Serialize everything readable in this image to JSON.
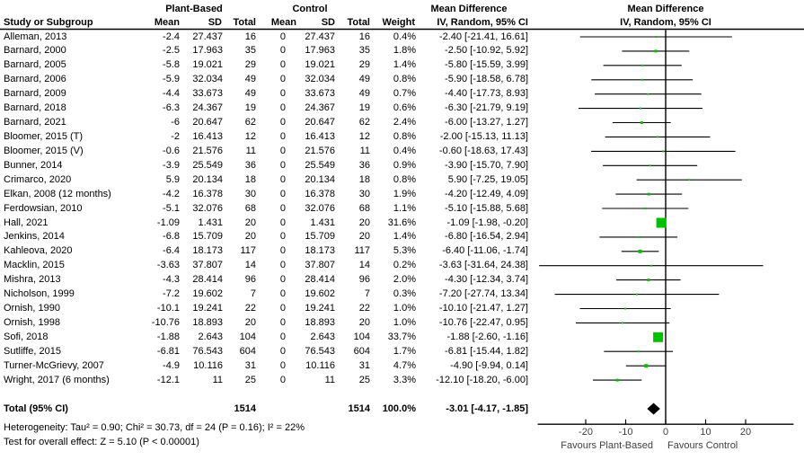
{
  "chart_data": {
    "type": "forest",
    "effect_label": "Mean Difference",
    "method_label": "IV, Random, 95% CI",
    "group1_label": "Plant-Based",
    "group2_label": "Control",
    "col_headers": {
      "study": "Study or Subgroup",
      "mean": "Mean",
      "sd": "SD",
      "total": "Total",
      "weight": "Weight"
    },
    "studies": [
      {
        "name": "Alleman, 2013",
        "m1": "-2.4",
        "sd1": "27.437",
        "n1": "16",
        "m2": "0",
        "sd2": "27.437",
        "n2": "16",
        "weight": "0.4%",
        "ci": "-2.40 [-21.41, 16.61]",
        "est": -2.4,
        "lo": -21.41,
        "hi": 16.61,
        "w": 0.4
      },
      {
        "name": "Barnard, 2000",
        "m1": "-2.5",
        "sd1": "17.963",
        "n1": "35",
        "m2": "0",
        "sd2": "17.963",
        "n2": "35",
        "weight": "1.8%",
        "ci": "-2.50 [-10.92, 5.92]",
        "est": -2.5,
        "lo": -10.92,
        "hi": 5.92,
        "w": 1.8
      },
      {
        "name": "Barnard, 2005",
        "m1": "-5.8",
        "sd1": "19.021",
        "n1": "29",
        "m2": "0",
        "sd2": "19.021",
        "n2": "29",
        "weight": "1.4%",
        "ci": "-5.80 [-15.59, 3.99]",
        "est": -5.8,
        "lo": -15.59,
        "hi": 3.99,
        "w": 1.4
      },
      {
        "name": "Barnard, 2006",
        "m1": "-5.9",
        "sd1": "32.034",
        "n1": "49",
        "m2": "0",
        "sd2": "32.034",
        "n2": "49",
        "weight": "0.8%",
        "ci": "-5.90 [-18.58, 6.78]",
        "est": -5.9,
        "lo": -18.58,
        "hi": 6.78,
        "w": 0.8
      },
      {
        "name": "Barnard, 2009",
        "m1": "-4.4",
        "sd1": "33.673",
        "n1": "49",
        "m2": "0",
        "sd2": "33.673",
        "n2": "49",
        "weight": "0.7%",
        "ci": "-4.40 [-17.73, 8.93]",
        "est": -4.4,
        "lo": -17.73,
        "hi": 8.93,
        "w": 0.7
      },
      {
        "name": "Barnard, 2018",
        "m1": "-6.3",
        "sd1": "24.367",
        "n1": "19",
        "m2": "0",
        "sd2": "24.367",
        "n2": "19",
        "weight": "0.6%",
        "ci": "-6.30 [-21.79, 9.19]",
        "est": -6.3,
        "lo": -21.79,
        "hi": 9.19,
        "w": 0.6
      },
      {
        "name": "Barnard, 2021",
        "m1": "-6",
        "sd1": "20.647",
        "n1": "62",
        "m2": "0",
        "sd2": "20.647",
        "n2": "62",
        "weight": "2.4%",
        "ci": "-6.00 [-13.27, 1.27]",
        "est": -6.0,
        "lo": -13.27,
        "hi": 1.27,
        "w": 2.4
      },
      {
        "name": "Bloomer, 2015 (T)",
        "m1": "-2",
        "sd1": "16.413",
        "n1": "12",
        "m2": "0",
        "sd2": "16.413",
        "n2": "12",
        "weight": "0.8%",
        "ci": "-2.00 [-15.13, 11.13]",
        "est": -2.0,
        "lo": -15.13,
        "hi": 11.13,
        "w": 0.8
      },
      {
        "name": "Bloomer, 2015 (V)",
        "m1": "-0.6",
        "sd1": "21.576",
        "n1": "11",
        "m2": "0",
        "sd2": "21.576",
        "n2": "11",
        "weight": "0.4%",
        "ci": "-0.60 [-18.63, 17.43]",
        "est": -0.6,
        "lo": -18.63,
        "hi": 17.43,
        "w": 0.4
      },
      {
        "name": "Bunner, 2014",
        "m1": "-3.9",
        "sd1": "25.549",
        "n1": "36",
        "m2": "0",
        "sd2": "25.549",
        "n2": "36",
        "weight": "0.9%",
        "ci": "-3.90 [-15.70, 7.90]",
        "est": -3.9,
        "lo": -15.7,
        "hi": 7.9,
        "w": 0.9
      },
      {
        "name": "Crimarco, 2020",
        "m1": "5.9",
        "sd1": "20.134",
        "n1": "18",
        "m2": "0",
        "sd2": "20.134",
        "n2": "18",
        "weight": "0.8%",
        "ci": "5.90 [-7.25, 19.05]",
        "est": 5.9,
        "lo": -7.25,
        "hi": 19.05,
        "w": 0.8
      },
      {
        "name": "Elkan, 2008 (12 months)",
        "m1": "-4.2",
        "sd1": "16.378",
        "n1": "30",
        "m2": "0",
        "sd2": "16.378",
        "n2": "30",
        "weight": "1.9%",
        "ci": "-4.20 [-12.49, 4.09]",
        "est": -4.2,
        "lo": -12.49,
        "hi": 4.09,
        "w": 1.9
      },
      {
        "name": "Ferdowsian, 2010",
        "m1": "-5.1",
        "sd1": "32.076",
        "n1": "68",
        "m2": "0",
        "sd2": "32.076",
        "n2": "68",
        "weight": "1.1%",
        "ci": "-5.10 [-15.88, 5.68]",
        "est": -5.1,
        "lo": -15.88,
        "hi": 5.68,
        "w": 1.1
      },
      {
        "name": "Hall, 2021",
        "m1": "-1.09",
        "sd1": "1.431",
        "n1": "20",
        "m2": "0",
        "sd2": "1.431",
        "n2": "20",
        "weight": "31.6%",
        "ci": "-1.09 [-1.98, -0.20]",
        "est": -1.09,
        "lo": -1.98,
        "hi": -0.2,
        "w": 31.6
      },
      {
        "name": "Jenkins, 2014",
        "m1": "-6.8",
        "sd1": "15.709",
        "n1": "20",
        "m2": "0",
        "sd2": "15.709",
        "n2": "20",
        "weight": "1.4%",
        "ci": "-6.80 [-16.54, 2.94]",
        "est": -6.8,
        "lo": -16.54,
        "hi": 2.94,
        "w": 1.4
      },
      {
        "name": "Kahleova, 2020",
        "m1": "-6.4",
        "sd1": "18.173",
        "n1": "117",
        "m2": "0",
        "sd2": "18.173",
        "n2": "117",
        "weight": "5.3%",
        "ci": "-6.40 [-11.06, -1.74]",
        "est": -6.4,
        "lo": -11.06,
        "hi": -1.74,
        "w": 5.3
      },
      {
        "name": "Macklin, 2015",
        "m1": "-3.63",
        "sd1": "37.807",
        "n1": "14",
        "m2": "0",
        "sd2": "37.807",
        "n2": "14",
        "weight": "0.2%",
        "ci": "-3.63 [-31.64, 24.38]",
        "est": -3.63,
        "lo": -31.64,
        "hi": 24.38,
        "w": 0.2
      },
      {
        "name": "Mishra, 2013",
        "m1": "-4.3",
        "sd1": "28.414",
        "n1": "96",
        "m2": "0",
        "sd2": "28.414",
        "n2": "96",
        "weight": "2.0%",
        "ci": "-4.30 [-12.34, 3.74]",
        "est": -4.3,
        "lo": -12.34,
        "hi": 3.74,
        "w": 2.0
      },
      {
        "name": "Nicholson, 1999",
        "m1": "-7.2",
        "sd1": "19.602",
        "n1": "7",
        "m2": "0",
        "sd2": "19.602",
        "n2": "7",
        "weight": "0.3%",
        "ci": "-7.20 [-27.74, 13.34]",
        "est": -7.2,
        "lo": -27.74,
        "hi": 13.34,
        "w": 0.3
      },
      {
        "name": "Ornish, 1990",
        "m1": "-10.1",
        "sd1": "19.241",
        "n1": "22",
        "m2": "0",
        "sd2": "19.241",
        "n2": "22",
        "weight": "1.0%",
        "ci": "-10.10 [-21.47, 1.27]",
        "est": -10.1,
        "lo": -21.47,
        "hi": 1.27,
        "w": 1.0
      },
      {
        "name": "Ornish, 1998",
        "m1": "-10.76",
        "sd1": "18.893",
        "n1": "20",
        "m2": "0",
        "sd2": "18.893",
        "n2": "20",
        "weight": "1.0%",
        "ci": "-10.76 [-22.47, 0.95]",
        "est": -10.76,
        "lo": -22.47,
        "hi": 0.95,
        "w": 1.0
      },
      {
        "name": "Sofi, 2018",
        "m1": "-1.88",
        "sd1": "2.643",
        "n1": "104",
        "m2": "0",
        "sd2": "2.643",
        "n2": "104",
        "weight": "33.7%",
        "ci": "-1.88 [-2.60, -1.16]",
        "est": -1.88,
        "lo": -2.6,
        "hi": -1.16,
        "w": 33.7
      },
      {
        "name": "Sutliffe, 2015",
        "m1": "-6.81",
        "sd1": "76.543",
        "n1": "604",
        "m2": "0",
        "sd2": "76.543",
        "n2": "604",
        "weight": "1.7%",
        "ci": "-6.81 [-15.44, 1.82]",
        "est": -6.81,
        "lo": -15.44,
        "hi": 1.82,
        "w": 1.7
      },
      {
        "name": "Turner-McGrievy, 2007",
        "m1": "-4.9",
        "sd1": "10.116",
        "n1": "31",
        "m2": "0",
        "sd2": "10.116",
        "n2": "31",
        "weight": "4.7%",
        "ci": "-4.90 [-9.94, 0.14]",
        "est": -4.9,
        "lo": -9.94,
        "hi": 0.14,
        "w": 4.7
      },
      {
        "name": "Wright, 2017 (6 months)",
        "m1": "-12.1",
        "sd1": "11",
        "n1": "25",
        "m2": "0",
        "sd2": "11",
        "n2": "25",
        "weight": "3.3%",
        "ci": "-12.10 [-18.20, -6.00]",
        "est": -12.1,
        "lo": -18.2,
        "hi": -6.0,
        "w": 3.3
      }
    ],
    "total": {
      "label": "Total (95% CI)",
      "n1": "1514",
      "n2": "1514",
      "weight": "100.0%",
      "ci": "-3.01 [-4.17, -1.85]",
      "est": -3.01,
      "lo": -4.17,
      "hi": -1.85
    },
    "heterogeneity": "Heterogeneity: Tau² = 0.90; Chi² = 30.73, df = 24 (P = 0.16); I² = 22%",
    "overall_effect": "Test for overall effect: Z = 5.10 (P < 0.00001)",
    "axis": {
      "xlim": [
        -32,
        32
      ],
      "ticks": [
        {
          "v": -20,
          "label": "-20"
        },
        {
          "v": -10,
          "label": "-10"
        },
        {
          "v": 0,
          "label": "0"
        },
        {
          "v": 10,
          "label": "10"
        },
        {
          "v": 20,
          "label": "20"
        }
      ],
      "favours_left": "Favours Plant-Based",
      "favours_right": "Favours Control"
    },
    "colors": {
      "marker": "#00c300",
      "diamond": "#000000",
      "line": "#000000"
    }
  }
}
